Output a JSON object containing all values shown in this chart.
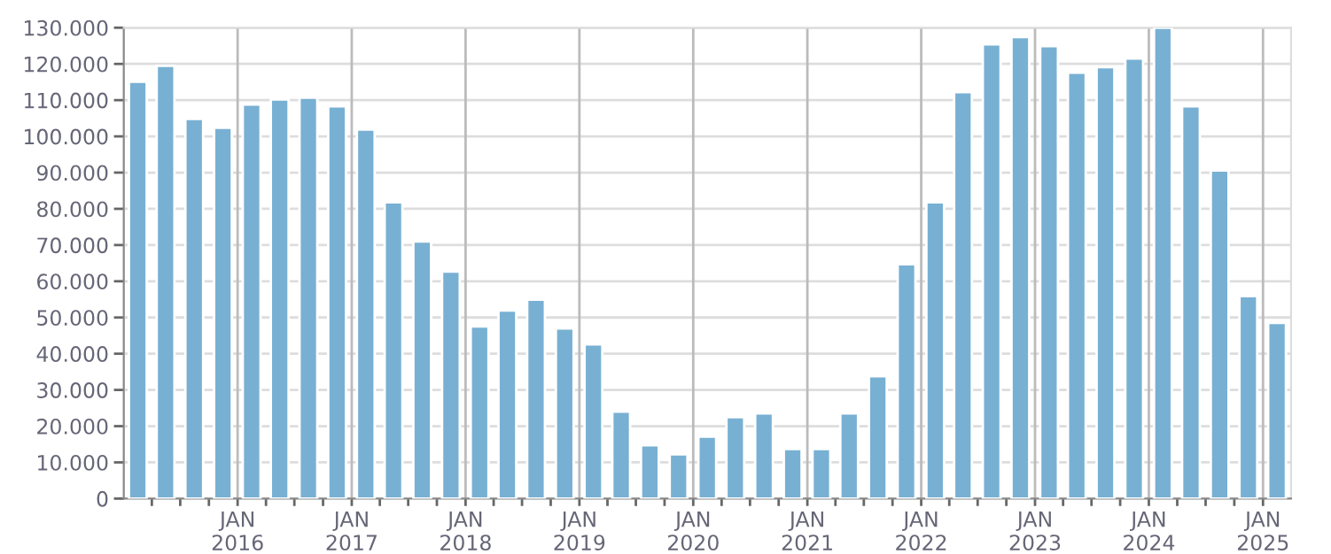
{
  "chart_data": {
    "type": "bar",
    "color": "#78b0d3",
    "x": [
      "2015-02-15",
      "2015-05-15",
      "2015-08-15",
      "2015-11-15",
      "2016-02-15",
      "2016-05-15",
      "2016-08-15",
      "2016-11-15",
      "2017-02-15",
      "2017-05-15",
      "2017-08-15",
      "2017-11-15",
      "2018-02-15",
      "2018-05-15",
      "2018-08-15",
      "2018-11-15",
      "2019-02-15",
      "2019-05-15",
      "2019-08-15",
      "2019-11-15",
      "2020-02-15",
      "2020-05-15",
      "2020-08-15",
      "2020-11-15",
      "2021-02-15",
      "2021-05-15",
      "2021-08-15",
      "2021-11-15",
      "2022-02-15",
      "2022-05-15",
      "2022-08-15",
      "2022-11-15",
      "2023-02-15",
      "2023-05-15",
      "2023-08-15",
      "2023-11-15",
      "2024-02-15",
      "2024-05-15",
      "2024-08-15",
      "2024-11-15",
      "2025-02-15"
    ],
    "values": [
      115100,
      119500,
      104800,
      102400,
      108800,
      110200,
      110700,
      108300,
      101900,
      81800,
      71000,
      62700,
      47500,
      51900,
      54900,
      47000,
      42600,
      24000,
      14700,
      12200,
      17100,
      22500,
      23500,
      13700,
      13700,
      23500,
      33800,
      64700,
      81800,
      112200,
      125400,
      127400,
      124900,
      117600,
      119100,
      121500,
      130000,
      108300,
      90600,
      55900,
      48500
    ],
    "xlim": [
      "2015-01-01",
      "2025-04-01"
    ],
    "xticks": [
      {
        "value": "2015-04-01",
        "label": null
      },
      {
        "value": "2015-07-01",
        "label": null
      },
      {
        "value": "2015-10-01",
        "label": null
      },
      {
        "value": "2016-01-01",
        "label": "JAN\n2016"
      },
      {
        "value": "2016-04-01",
        "label": null
      },
      {
        "value": "2016-07-01",
        "label": null
      },
      {
        "value": "2016-10-01",
        "label": null
      },
      {
        "value": "2017-01-01",
        "label": "JAN\n2017"
      },
      {
        "value": "2017-04-01",
        "label": null
      },
      {
        "value": "2017-07-01",
        "label": null
      },
      {
        "value": "2017-10-01",
        "label": null
      },
      {
        "value": "2018-01-01",
        "label": "JAN\n2018"
      },
      {
        "value": "2018-04-01",
        "label": null
      },
      {
        "value": "2018-07-01",
        "label": null
      },
      {
        "value": "2018-10-01",
        "label": null
      },
      {
        "value": "2019-01-01",
        "label": "JAN\n2019"
      },
      {
        "value": "2019-04-01",
        "label": null
      },
      {
        "value": "2019-07-01",
        "label": null
      },
      {
        "value": "2019-10-01",
        "label": null
      },
      {
        "value": "2020-01-01",
        "label": "JAN\n2020"
      },
      {
        "value": "2020-04-01",
        "label": null
      },
      {
        "value": "2020-07-01",
        "label": null
      },
      {
        "value": "2020-10-01",
        "label": null
      },
      {
        "value": "2021-01-01",
        "label": "JAN\n2021"
      },
      {
        "value": "2021-04-01",
        "label": null
      },
      {
        "value": "2021-07-01",
        "label": null
      },
      {
        "value": "2021-10-01",
        "label": null
      },
      {
        "value": "2022-01-01",
        "label": "JAN\n2022"
      },
      {
        "value": "2022-04-01",
        "label": null
      },
      {
        "value": "2022-07-01",
        "label": null
      },
      {
        "value": "2022-10-01",
        "label": null
      },
      {
        "value": "2023-01-01",
        "label": "JAN\n2023"
      },
      {
        "value": "2023-04-01",
        "label": null
      },
      {
        "value": "2023-07-01",
        "label": null
      },
      {
        "value": "2023-10-01",
        "label": null
      },
      {
        "value": "2024-01-01",
        "label": "JAN\n2024"
      },
      {
        "value": "2024-04-01",
        "label": null
      },
      {
        "value": "2024-07-01",
        "label": null
      },
      {
        "value": "2024-10-01",
        "label": null
      },
      {
        "value": "2025-01-01",
        "label": "JAN\n2025"
      }
    ],
    "ylim": [
      0,
      130000
    ],
    "yticks": [
      {
        "value": 0,
        "label": "0"
      },
      {
        "value": 10000,
        "label": "10.000"
      },
      {
        "value": 20000,
        "label": "20.000"
      },
      {
        "value": 30000,
        "label": "30.000"
      },
      {
        "value": 40000,
        "label": "40.000"
      },
      {
        "value": 50000,
        "label": "50.000"
      },
      {
        "value": 60000,
        "label": "60.000"
      },
      {
        "value": 70000,
        "label": "70.000"
      },
      {
        "value": 80000,
        "label": "80.000"
      },
      {
        "value": 90000,
        "label": "90.000"
      },
      {
        "value": 100000,
        "label": "100.000"
      },
      {
        "value": 110000,
        "label": "110.000"
      },
      {
        "value": 120000,
        "label": "120.000"
      },
      {
        "value": 130000,
        "label": "130.000"
      }
    ],
    "grid": true
  }
}
